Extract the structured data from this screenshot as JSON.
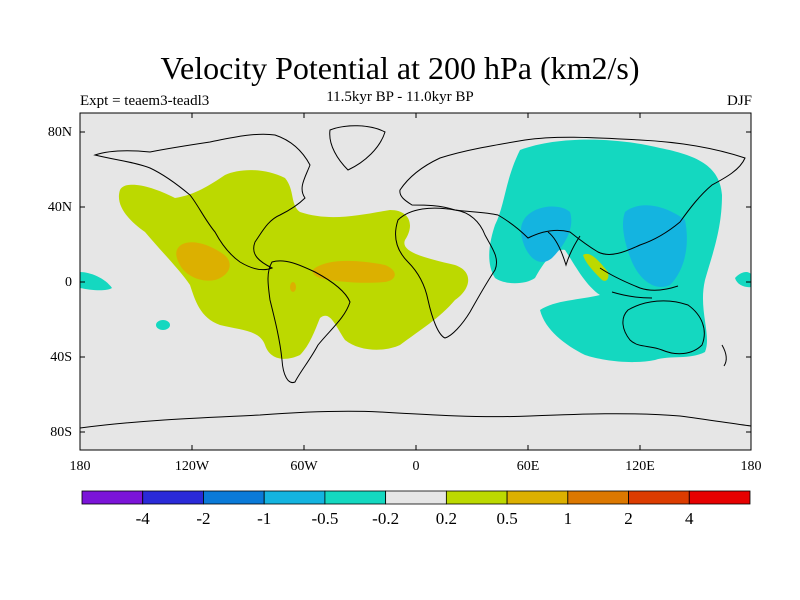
{
  "title": "Velocity Potential at 200 hPa (km2/s)",
  "subtitle": "11.5kyr BP - 11.0kyr BP",
  "experiment": "Expt = teaem3-teadl3",
  "season": "DJF",
  "map": {
    "projection": "cylindrical-equidistant",
    "lon_range": [
      -180,
      180
    ],
    "lat_range": [
      -90,
      90
    ],
    "x_ticks": [
      "180",
      "120W",
      "60W",
      "0",
      "60E",
      "120E",
      "180"
    ],
    "y_ticks": [
      "80N",
      "40N",
      "0",
      "40S",
      "80S"
    ]
  },
  "colorbar": {
    "colors": [
      "#7b14d8",
      "#2a2ad8",
      "#0a7ad8",
      "#14b4e0",
      "#14d8c0",
      "#e6e6e6",
      "#bcd900",
      "#dcb000",
      "#dc7800",
      "#dc3c00",
      "#e60000"
    ],
    "labels": [
      "-4",
      "-2",
      "-1",
      "-0.5",
      "-0.2",
      "0.2",
      "0.5",
      "1",
      "2",
      "4"
    ]
  },
  "colors": {
    "background": "#e6e6e6",
    "positive_weak": "#bcd900",
    "positive_mid": "#dcb000",
    "negative_weak": "#14d8c0",
    "negative_mid": "#14b4e0"
  }
}
